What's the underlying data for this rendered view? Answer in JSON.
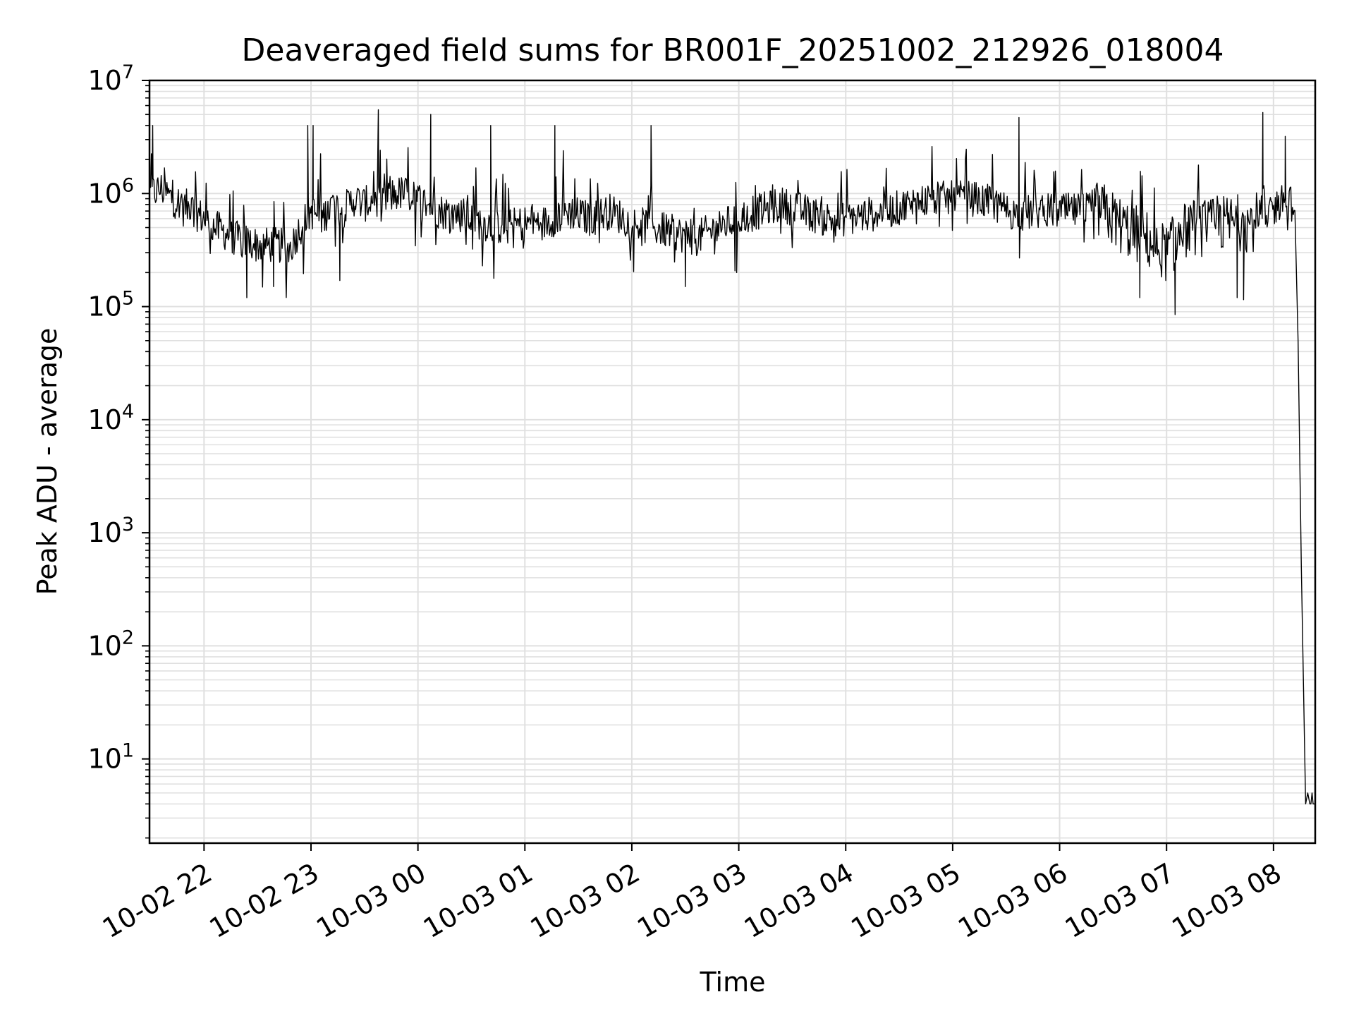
{
  "chart_data": {
    "type": "line",
    "title": "Deaveraged field sums for BR001F_20251002_212926_018004",
    "xlabel": "Time",
    "ylabel": "Peak ADU - average",
    "yscale": "log",
    "ylim": [
      1.8,
      10000000
    ],
    "xlim_hours": [
      -2.51,
      8.39
    ],
    "x_reference": "10-02 21:30",
    "grid": true,
    "legend": "none",
    "line_color": "#000000",
    "grid_color": "#e0e0e0",
    "y_ticks": [
      {
        "base": "10",
        "exp": "1",
        "value": 10
      },
      {
        "base": "10",
        "exp": "2",
        "value": 100
      },
      {
        "base": "10",
        "exp": "3",
        "value": 1000
      },
      {
        "base": "10",
        "exp": "4",
        "value": 10000
      },
      {
        "base": "10",
        "exp": "5",
        "value": 100000
      },
      {
        "base": "10",
        "exp": "6",
        "value": 1000000
      },
      {
        "base": "10",
        "exp": "7",
        "value": 10000000
      }
    ],
    "x_ticks": [
      {
        "label": "10-02 22",
        "hour": -2
      },
      {
        "label": "10-02 23",
        "hour": -1
      },
      {
        "label": "10-03 00",
        "hour": 0
      },
      {
        "label": "10-03 01",
        "hour": 1
      },
      {
        "label": "10-03 02",
        "hour": 2
      },
      {
        "label": "10-03 03",
        "hour": 3
      },
      {
        "label": "10-03 04",
        "hour": 4
      },
      {
        "label": "10-03 05",
        "hour": 5
      },
      {
        "label": "10-03 06",
        "hour": 6
      },
      {
        "label": "10-03 07",
        "hour": 7
      },
      {
        "label": "10-03 08",
        "hour": 8
      }
    ],
    "series": [
      {
        "name": "deaveraged field sum",
        "x_hours": [
          -2.5,
          -2.4,
          -2.3,
          -2.2,
          -2.1,
          -2.0,
          -1.9,
          -1.8,
          -1.7,
          -1.6,
          -1.5,
          -1.4,
          -1.3,
          -1.2,
          -1.1,
          -1.0,
          -0.9,
          -0.8,
          -0.7,
          -0.6,
          -0.5,
          -0.4,
          -0.3,
          -0.2,
          -0.1,
          0.0,
          0.2,
          0.4,
          0.6,
          0.8,
          1.0,
          1.2,
          1.4,
          1.6,
          1.8,
          2.0,
          2.2,
          2.4,
          2.6,
          2.8,
          3.0,
          3.2,
          3.4,
          3.6,
          3.8,
          4.0,
          4.2,
          4.4,
          4.6,
          4.8,
          5.0,
          5.2,
          5.4,
          5.6,
          5.8,
          6.0,
          6.2,
          6.4,
          6.6,
          6.8,
          7.0,
          7.2,
          7.4,
          7.6,
          7.8,
          7.95,
          8.1,
          8.18,
          8.2,
          8.23,
          8.26,
          8.3,
          8.35,
          8.39
        ],
        "values": [
          1000000,
          1100000,
          900000,
          800000,
          700000,
          600000,
          500000,
          450000,
          400000,
          380000,
          350000,
          350000,
          350000,
          320000,
          500000,
          700000,
          600000,
          800000,
          700000,
          900000,
          800000,
          900000,
          900000,
          1000000,
          1000000,
          900000,
          700000,
          650000,
          550000,
          500000,
          550000,
          550000,
          700000,
          600000,
          700000,
          550000,
          500000,
          450000,
          400000,
          500000,
          600000,
          700000,
          800000,
          700000,
          600000,
          600000,
          650000,
          700000,
          800000,
          900000,
          900000,
          900000,
          800000,
          650000,
          700000,
          700000,
          700000,
          700000,
          500000,
          400000,
          300000,
          500000,
          500000,
          550000,
          550000,
          650000,
          900000,
          800000,
          500000,
          50000,
          500,
          4,
          4,
          4
        ],
        "peaks_hours": [
          -2.48,
          -1.03,
          -0.98,
          -0.37,
          0.12,
          0.68,
          1.28,
          2.18,
          5.62,
          7.9,
          8.11
        ],
        "peaks_values": [
          4000000,
          4000000,
          4000000,
          5500000,
          5000000,
          4000000,
          4000000,
          4000000,
          4700000,
          5200000,
          3200000
        ],
        "troughs_hours": [
          -1.6,
          -1.35,
          -0.73,
          2.5,
          2.98,
          6.75,
          7.08,
          7.66,
          7.72
        ],
        "troughs_values": [
          120000,
          150000,
          170000,
          150000,
          200000,
          120000,
          85000,
          120000,
          115000
        ]
      }
    ]
  }
}
